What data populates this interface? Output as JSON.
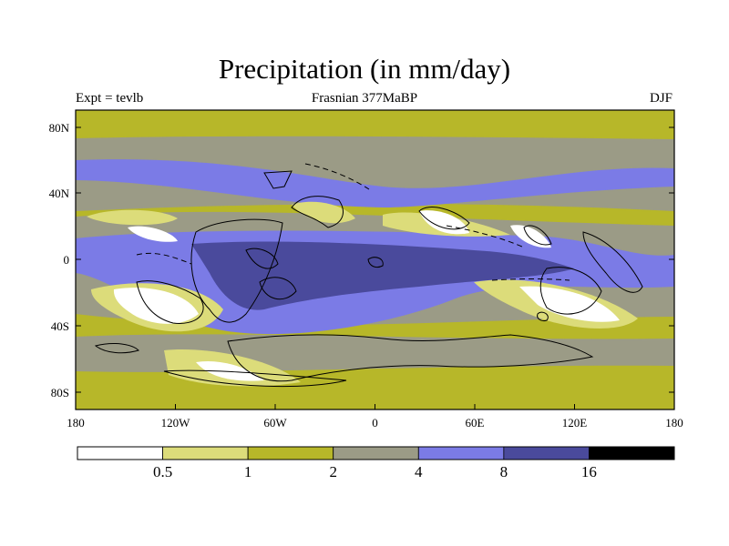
{
  "title": "Precipitation (in mm/day)",
  "left_label": "Expt = tevlb",
  "center_label": "Frasnian 377MaBP",
  "right_label": "DJF",
  "lat_ticks": [
    "80N",
    "40N",
    "0",
    "40S",
    "80S"
  ],
  "lon_ticks": [
    "180",
    "120W",
    "60W",
    "0",
    "60E",
    "120E",
    "180"
  ],
  "colorbar": {
    "bins": [
      {
        "color": "#ffffff"
      },
      {
        "color": "#dcdc7a"
      },
      {
        "color": "#b7b729"
      },
      {
        "color": "#9b9b86"
      },
      {
        "color": "#7b7be6"
      },
      {
        "color": "#4a4a9c"
      },
      {
        "color": "#000000"
      }
    ],
    "labels": [
      "0.5",
      "1",
      "2",
      "4",
      "8",
      "16"
    ]
  },
  "palette": {
    "white": "#ffffff",
    "pale": "#dcdc7a",
    "olive": "#b7b729",
    "gray": "#9b9b86",
    "lavender": "#7b7be6",
    "navy": "#4a4a9c"
  }
}
